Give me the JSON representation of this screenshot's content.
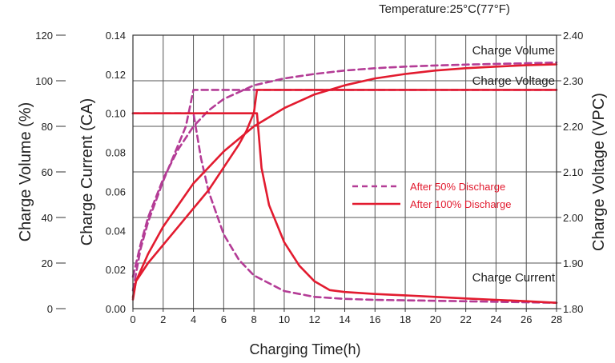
{
  "chart_data": {
    "type": "line",
    "title": "Temperature:25°C(77°F)",
    "xlabel": "Charging Time(h)",
    "xlim": [
      0,
      28
    ],
    "xticks": [
      "0",
      "2",
      "4",
      "6",
      "8",
      "10",
      "12",
      "14",
      "16",
      "18",
      "20",
      "22",
      "24",
      "26",
      "28"
    ],
    "axes": {
      "volume": {
        "label": "Charge Volume (%)",
        "range": [
          0,
          120
        ],
        "ticks": [
          "0",
          "20",
          "40",
          "60",
          "80",
          "100",
          "120"
        ]
      },
      "current": {
        "label": "Charge Current (CA)",
        "range": [
          0,
          0.14
        ],
        "ticks": [
          "0.00",
          "0.02",
          "0.04",
          "0.06",
          "0.08",
          "0.10",
          "0.12",
          "0.14"
        ]
      },
      "voltage": {
        "label": "Charge Voltage (VPC)",
        "range": [
          1.8,
          2.4
        ],
        "ticks": [
          "1.80",
          "1.90",
          "2.00",
          "2.10",
          "2.20",
          "2.30",
          "2.40"
        ]
      }
    },
    "curve_labels": {
      "volume": "Charge Volume",
      "voltage": "Charge Voltage",
      "current": "Charge Current"
    },
    "legend": [
      {
        "name": "After 50% Discharge",
        "style": "dashed",
        "color": "#b43c96"
      },
      {
        "name": "After 100% Discharge",
        "style": "solid",
        "color": "#e21b2f"
      }
    ],
    "series": [
      {
        "name": "After 50% Discharge",
        "quantity": "Charge Volume",
        "axis": "volume",
        "x": [
          0,
          0.5,
          1,
          2,
          3,
          4,
          5,
          6,
          8,
          10,
          12,
          14,
          16,
          18,
          20,
          22,
          24,
          26,
          28
        ],
        "y": [
          14,
          28,
          40,
          57,
          70,
          80,
          87,
          92,
          98,
          101,
          103,
          104.5,
          105.5,
          106.2,
          106.7,
          107.1,
          107.4,
          107.7,
          108
        ]
      },
      {
        "name": "After 50% Discharge",
        "quantity": "Charge Voltage",
        "axis": "voltage",
        "x": [
          0,
          0.5,
          1,
          2,
          3,
          3.5,
          4,
          28
        ],
        "y": [
          1.84,
          1.93,
          1.99,
          2.08,
          2.16,
          2.2,
          2.28,
          2.28
        ]
      },
      {
        "name": "After 50% Discharge",
        "quantity": "Charge Current",
        "axis": "current",
        "x": [
          0,
          4,
          4.5,
          5,
          6,
          7,
          8,
          10,
          12,
          14,
          16,
          20,
          24,
          28
        ],
        "y": [
          0.1,
          0.1,
          0.077,
          0.06,
          0.038,
          0.025,
          0.017,
          0.009,
          0.006,
          0.005,
          0.0045,
          0.004,
          0.0035,
          0.003
        ]
      },
      {
        "name": "After 100% Discharge",
        "quantity": "Charge Volume",
        "axis": "volume",
        "x": [
          0,
          0.2,
          1,
          2,
          4,
          6,
          8,
          10,
          12,
          14,
          16,
          18,
          20,
          22,
          24,
          26,
          28
        ],
        "y": [
          5,
          12,
          24,
          36,
          55,
          69,
          80,
          88,
          94,
          98,
          101,
          103,
          104.5,
          105.5,
          106.2,
          106.8,
          107.2
        ]
      },
      {
        "name": "After 100% Discharge",
        "quantity": "Charge Voltage",
        "axis": "voltage",
        "x": [
          0,
          0.2,
          1,
          2,
          3,
          4,
          5,
          6,
          7,
          7.5,
          8,
          8.2,
          28
        ],
        "y": [
          1.82,
          1.86,
          1.9,
          1.94,
          1.98,
          2.02,
          2.06,
          2.11,
          2.16,
          2.19,
          2.23,
          2.28,
          2.28
        ]
      },
      {
        "name": "After 100% Discharge",
        "quantity": "Charge Current",
        "axis": "current",
        "x": [
          0,
          8.2,
          8.5,
          9,
          10,
          11,
          12,
          13,
          14,
          16,
          18,
          20,
          22,
          24,
          26,
          28
        ],
        "y": [
          0.1,
          0.1,
          0.072,
          0.053,
          0.034,
          0.022,
          0.014,
          0.0095,
          0.0085,
          0.0075,
          0.0068,
          0.006,
          0.0052,
          0.0045,
          0.0038,
          0.003
        ]
      }
    ]
  }
}
